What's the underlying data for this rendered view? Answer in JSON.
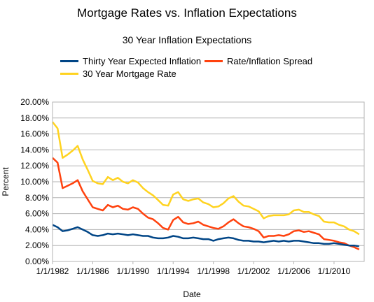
{
  "chart_data": {
    "type": "line",
    "title": "Mortgage Rates vs. Inflation Expectations",
    "subtitle": "30 Year Inflation Expectations",
    "xlabel": "Date",
    "ylabel": "Percent",
    "ylim": [
      0,
      20
    ],
    "xlim": [
      1982.0,
      2013.0
    ],
    "yticks": [
      "0.00%",
      "2.00%",
      "4.00%",
      "6.00%",
      "8.00%",
      "10.00%",
      "12.00%",
      "14.00%",
      "16.00%",
      "18.00%",
      "20.00%"
    ],
    "xticks": [
      {
        "value": 1982,
        "label": "1/1/1982"
      },
      {
        "value": 1986,
        "label": "1/1/1986"
      },
      {
        "value": 1990,
        "label": "1/1/1990"
      },
      {
        "value": 1994,
        "label": "1/1/1994"
      },
      {
        "value": 1998,
        "label": "1/1/1998"
      },
      {
        "value": 2002,
        "label": "1/1/2002"
      },
      {
        "value": 2006,
        "label": "1/1/2006"
      },
      {
        "value": 2010,
        "label": "1/1/2010"
      }
    ],
    "grid": true,
    "legend_position": "top",
    "series": [
      {
        "name": "Thirty Year Expected Inflation",
        "color": "#004586",
        "x": [
          1982.0,
          1982.5,
          1983.0,
          1983.5,
          1984.0,
          1984.5,
          1985.0,
          1985.5,
          1986.0,
          1986.5,
          1987.0,
          1987.5,
          1988.0,
          1988.5,
          1989.0,
          1989.5,
          1990.0,
          1990.5,
          1991.0,
          1991.5,
          1992.0,
          1992.5,
          1993.0,
          1993.5,
          1994.0,
          1994.5,
          1995.0,
          1995.5,
          1996.0,
          1996.5,
          1997.0,
          1997.5,
          1998.0,
          1998.5,
          1999.0,
          1999.5,
          2000.0,
          2000.5,
          2001.0,
          2001.5,
          2002.0,
          2002.5,
          2003.0,
          2003.5,
          2004.0,
          2004.5,
          2005.0,
          2005.5,
          2006.0,
          2006.5,
          2007.0,
          2007.5,
          2008.0,
          2008.5,
          2009.0,
          2009.5,
          2010.0,
          2010.5,
          2011.0,
          2011.5,
          2012.0,
          2012.5
        ],
        "y": [
          4.6,
          4.3,
          3.8,
          3.9,
          4.1,
          4.3,
          4.0,
          3.7,
          3.3,
          3.2,
          3.3,
          3.5,
          3.4,
          3.5,
          3.4,
          3.3,
          3.4,
          3.3,
          3.2,
          3.2,
          3.0,
          2.9,
          2.9,
          3.0,
          3.2,
          3.1,
          2.9,
          2.9,
          3.0,
          2.9,
          2.8,
          2.8,
          2.6,
          2.8,
          2.9,
          3.0,
          2.9,
          2.7,
          2.6,
          2.6,
          2.5,
          2.5,
          2.4,
          2.5,
          2.6,
          2.5,
          2.6,
          2.5,
          2.6,
          2.6,
          2.5,
          2.4,
          2.3,
          2.3,
          2.2,
          2.2,
          2.3,
          2.2,
          2.1,
          2.0,
          2.0,
          1.9
        ]
      },
      {
        "name": "Rate/Inflation Spread",
        "color": "#ff420e",
        "x": [
          1982.0,
          1982.5,
          1983.0,
          1983.5,
          1984.0,
          1984.5,
          1985.0,
          1985.5,
          1986.0,
          1986.5,
          1987.0,
          1987.5,
          1988.0,
          1988.5,
          1989.0,
          1989.5,
          1990.0,
          1990.5,
          1991.0,
          1991.5,
          1992.0,
          1992.5,
          1993.0,
          1993.5,
          1994.0,
          1994.5,
          1995.0,
          1995.5,
          1996.0,
          1996.5,
          1997.0,
          1997.5,
          1998.0,
          1998.5,
          1999.0,
          1999.5,
          2000.0,
          2000.5,
          2001.0,
          2001.5,
          2002.0,
          2002.5,
          2003.0,
          2003.5,
          2004.0,
          2004.5,
          2005.0,
          2005.5,
          2006.0,
          2006.5,
          2007.0,
          2007.5,
          2008.0,
          2008.5,
          2009.0,
          2009.5,
          2010.0,
          2010.5,
          2011.0,
          2011.5,
          2012.0,
          2012.5
        ],
        "y": [
          13.0,
          12.4,
          9.2,
          9.5,
          9.8,
          10.2,
          8.8,
          7.8,
          6.8,
          6.6,
          6.4,
          7.1,
          6.8,
          7.0,
          6.6,
          6.5,
          6.8,
          6.6,
          6.0,
          5.5,
          5.3,
          4.8,
          4.2,
          4.0,
          5.2,
          5.6,
          4.9,
          4.7,
          4.8,
          5.0,
          4.6,
          4.4,
          4.2,
          4.1,
          4.4,
          4.9,
          5.3,
          4.8,
          4.4,
          4.3,
          4.1,
          3.8,
          3.0,
          3.2,
          3.2,
          3.3,
          3.2,
          3.4,
          3.8,
          3.9,
          3.7,
          3.8,
          3.6,
          3.4,
          2.8,
          2.7,
          2.6,
          2.4,
          2.3,
          2.0,
          1.8,
          1.5
        ]
      },
      {
        "name": "30 Year Mortgage Rate",
        "color": "#ffd320",
        "x": [
          1982.0,
          1982.5,
          1983.0,
          1983.5,
          1984.0,
          1984.5,
          1985.0,
          1985.5,
          1986.0,
          1986.5,
          1987.0,
          1987.5,
          1988.0,
          1988.5,
          1989.0,
          1989.5,
          1990.0,
          1990.5,
          1991.0,
          1991.5,
          1992.0,
          1992.5,
          1993.0,
          1993.5,
          1994.0,
          1994.5,
          1995.0,
          1995.5,
          1996.0,
          1996.5,
          1997.0,
          1997.5,
          1998.0,
          1998.5,
          1999.0,
          1999.5,
          2000.0,
          2000.5,
          2001.0,
          2001.5,
          2002.0,
          2002.5,
          2003.0,
          2003.5,
          2004.0,
          2004.5,
          2005.0,
          2005.5,
          2006.0,
          2006.5,
          2007.0,
          2007.5,
          2008.0,
          2008.5,
          2009.0,
          2009.5,
          2010.0,
          2010.5,
          2011.0,
          2011.5,
          2012.0,
          2012.5
        ],
        "y": [
          17.5,
          16.7,
          13.0,
          13.4,
          13.9,
          14.5,
          12.8,
          11.5,
          10.1,
          9.8,
          9.7,
          10.6,
          10.2,
          10.5,
          10.0,
          9.8,
          10.2,
          9.9,
          9.2,
          8.7,
          8.3,
          7.7,
          7.1,
          7.0,
          8.4,
          8.7,
          7.8,
          7.6,
          7.8,
          7.9,
          7.4,
          7.2,
          6.8,
          6.9,
          7.3,
          7.9,
          8.2,
          7.5,
          7.0,
          6.9,
          6.6,
          6.3,
          5.4,
          5.7,
          5.8,
          5.8,
          5.8,
          5.9,
          6.4,
          6.5,
          6.2,
          6.2,
          5.9,
          5.7,
          5.0,
          4.9,
          4.9,
          4.6,
          4.4,
          4.0,
          3.8,
          3.4
        ]
      }
    ]
  }
}
